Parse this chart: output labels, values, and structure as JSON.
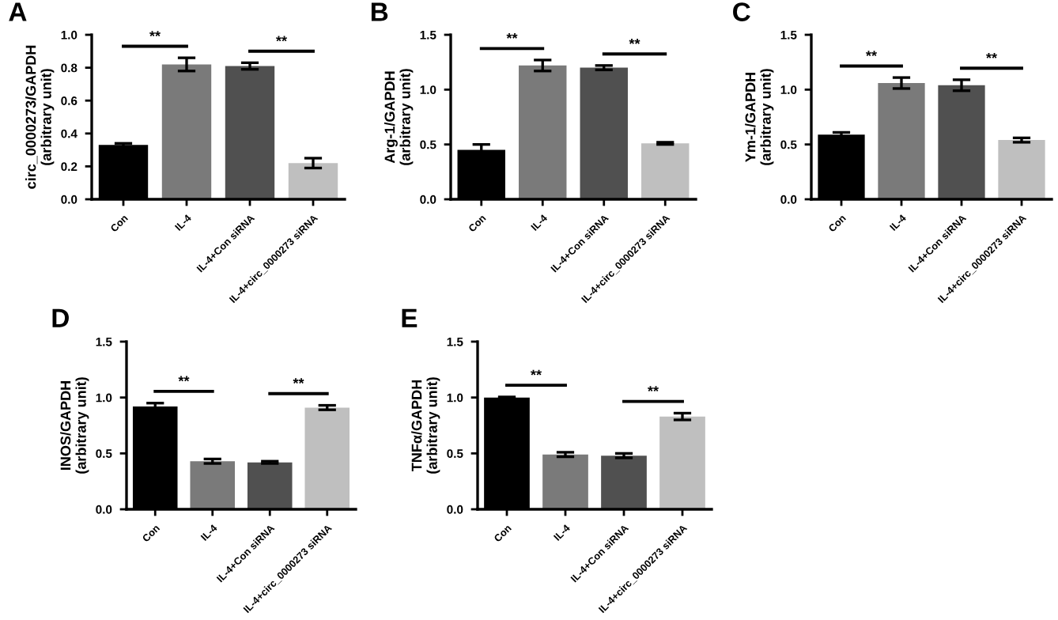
{
  "chart_data": [
    {
      "type": "bar",
      "title": "A",
      "ylabel": "circ_0000273/GAPDH\n(arbitrary unit)",
      "categories": [
        "Con",
        "IL-4",
        "IL-4+Con siRNA",
        "IL-4+circ_0000273 siRNA"
      ],
      "values": [
        0.33,
        0.82,
        0.81,
        0.22
      ],
      "errors": [
        0.01,
        0.04,
        0.02,
        0.03
      ],
      "colors": [
        "#000000",
        "#7a7a7a",
        "#505050",
        "#bfbfbf"
      ],
      "ylim": [
        0,
        1.0
      ],
      "yticks": [
        {
          "value": 0,
          "label": "0.0"
        },
        {
          "value": 0.2,
          "label": "0.2"
        },
        {
          "value": 0.4,
          "label": "0.4"
        },
        {
          "value": 0.6,
          "label": "0.6"
        },
        {
          "value": 0.8,
          "label": "0.8"
        },
        {
          "value": 1.0,
          "label": "1.0"
        }
      ],
      "annotations": [
        "**",
        "**"
      ],
      "grid": false
    },
    {
      "type": "bar",
      "title": "B",
      "ylabel": "Arg-1/GAPDH\n(arbitrary unit)",
      "categories": [
        "Con",
        "IL-4",
        "IL-4+Con siRNA",
        "IL-4+circ_0000273 siRNA"
      ],
      "values": [
        0.45,
        1.22,
        1.2,
        0.51
      ],
      "errors": [
        0.05,
        0.05,
        0.02,
        0.01
      ],
      "colors": [
        "#000000",
        "#7a7a7a",
        "#505050",
        "#bfbfbf"
      ],
      "ylim": [
        0,
        1.5
      ],
      "yticks": [
        {
          "value": 0,
          "label": "0.0"
        },
        {
          "value": 0.5,
          "label": "0.5"
        },
        {
          "value": 1.0,
          "label": "1.0"
        },
        {
          "value": 1.5,
          "label": "1.5"
        }
      ],
      "annotations": [
        "**",
        "**"
      ],
      "grid": false
    },
    {
      "type": "bar",
      "title": "C",
      "ylabel": "Ym-1/GAPDH\n(arbitrary unit)",
      "categories": [
        "Con",
        "IL-4",
        "IL-4+Con siRNA",
        "IL-4+circ_0000273 siRNA"
      ],
      "values": [
        0.59,
        1.06,
        1.04,
        0.54
      ],
      "errors": [
        0.02,
        0.05,
        0.05,
        0.02
      ],
      "colors": [
        "#000000",
        "#7a7a7a",
        "#505050",
        "#bfbfbf"
      ],
      "ylim": [
        0,
        1.5
      ],
      "yticks": [
        {
          "value": 0,
          "label": "0.0"
        },
        {
          "value": 0.5,
          "label": "0.5"
        },
        {
          "value": 1.0,
          "label": "1.0"
        },
        {
          "value": 1.5,
          "label": "1.5"
        }
      ],
      "annotations": [
        "**",
        "**"
      ],
      "grid": false
    },
    {
      "type": "bar",
      "title": "D",
      "ylabel": "INOS/GAPDH\n(arbitrary unit)",
      "categories": [
        "Con",
        "IL-4",
        "IL-4+Con siRNA",
        "IL-4+circ_0000273 siRNA"
      ],
      "values": [
        0.92,
        0.43,
        0.42,
        0.91
      ],
      "errors": [
        0.03,
        0.02,
        0.01,
        0.02
      ],
      "colors": [
        "#000000",
        "#7a7a7a",
        "#505050",
        "#bfbfbf"
      ],
      "ylim": [
        0,
        1.5
      ],
      "yticks": [
        {
          "value": 0,
          "label": "0.0"
        },
        {
          "value": 0.5,
          "label": "0.5"
        },
        {
          "value": 1.0,
          "label": "1.0"
        },
        {
          "value": 1.5,
          "label": "1.5"
        }
      ],
      "annotations": [
        "**",
        "**"
      ],
      "grid": false
    },
    {
      "type": "bar",
      "title": "E",
      "ylabel": "TNFα/GAPDH\n(arbitrary unit)",
      "categories": [
        "Con",
        "IL-4",
        "IL-4+Con siRNA",
        "IL-4+circ_0000273 siRNA"
      ],
      "values": [
        1.0,
        0.49,
        0.48,
        0.83
      ],
      "errors": [
        0.005,
        0.02,
        0.02,
        0.03
      ],
      "colors": [
        "#000000",
        "#7a7a7a",
        "#505050",
        "#bfbfbf"
      ],
      "ylim": [
        0,
        1.5
      ],
      "yticks": [
        {
          "value": 0,
          "label": "0.0"
        },
        {
          "value": 0.5,
          "label": "0.5"
        },
        {
          "value": 1.0,
          "label": "1.0"
        },
        {
          "value": 1.5,
          "label": "1.5"
        }
      ],
      "annotations": [
        "**",
        "**"
      ],
      "grid": false
    }
  ]
}
